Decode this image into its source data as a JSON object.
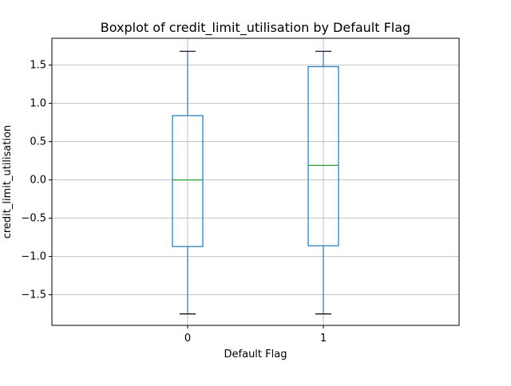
{
  "chart_data": {
    "type": "boxplot",
    "title": "Boxplot of credit_limit_utilisation by Default Flag",
    "xlabel": "Default Flag",
    "ylabel": "credit_limit_utilisation",
    "categories": [
      "0",
      "1"
    ],
    "boxes": [
      {
        "category": "0",
        "whisker_low": -1.75,
        "q1": -0.87,
        "median": 0.0,
        "q3": 0.84,
        "whisker_high": 1.68
      },
      {
        "category": "1",
        "whisker_low": -1.75,
        "q1": -0.86,
        "median": 0.19,
        "q3": 1.48,
        "whisker_high": 1.68
      }
    ],
    "ylim": [
      -1.9,
      1.85
    ],
    "yticks": [
      -1.5,
      -1.0,
      -0.5,
      0.0,
      0.5,
      1.0,
      1.5
    ],
    "ytick_labels": [
      "−1.5",
      "−1.0",
      "−0.5",
      "0.0",
      "0.5",
      "1.0",
      "1.5"
    ],
    "grid": true,
    "colors": {
      "box": "#1f77b4",
      "median": "#2ca02c",
      "whisker": "#1f77b4",
      "cap": "#000000",
      "grid": "#b0b0b0"
    }
  }
}
